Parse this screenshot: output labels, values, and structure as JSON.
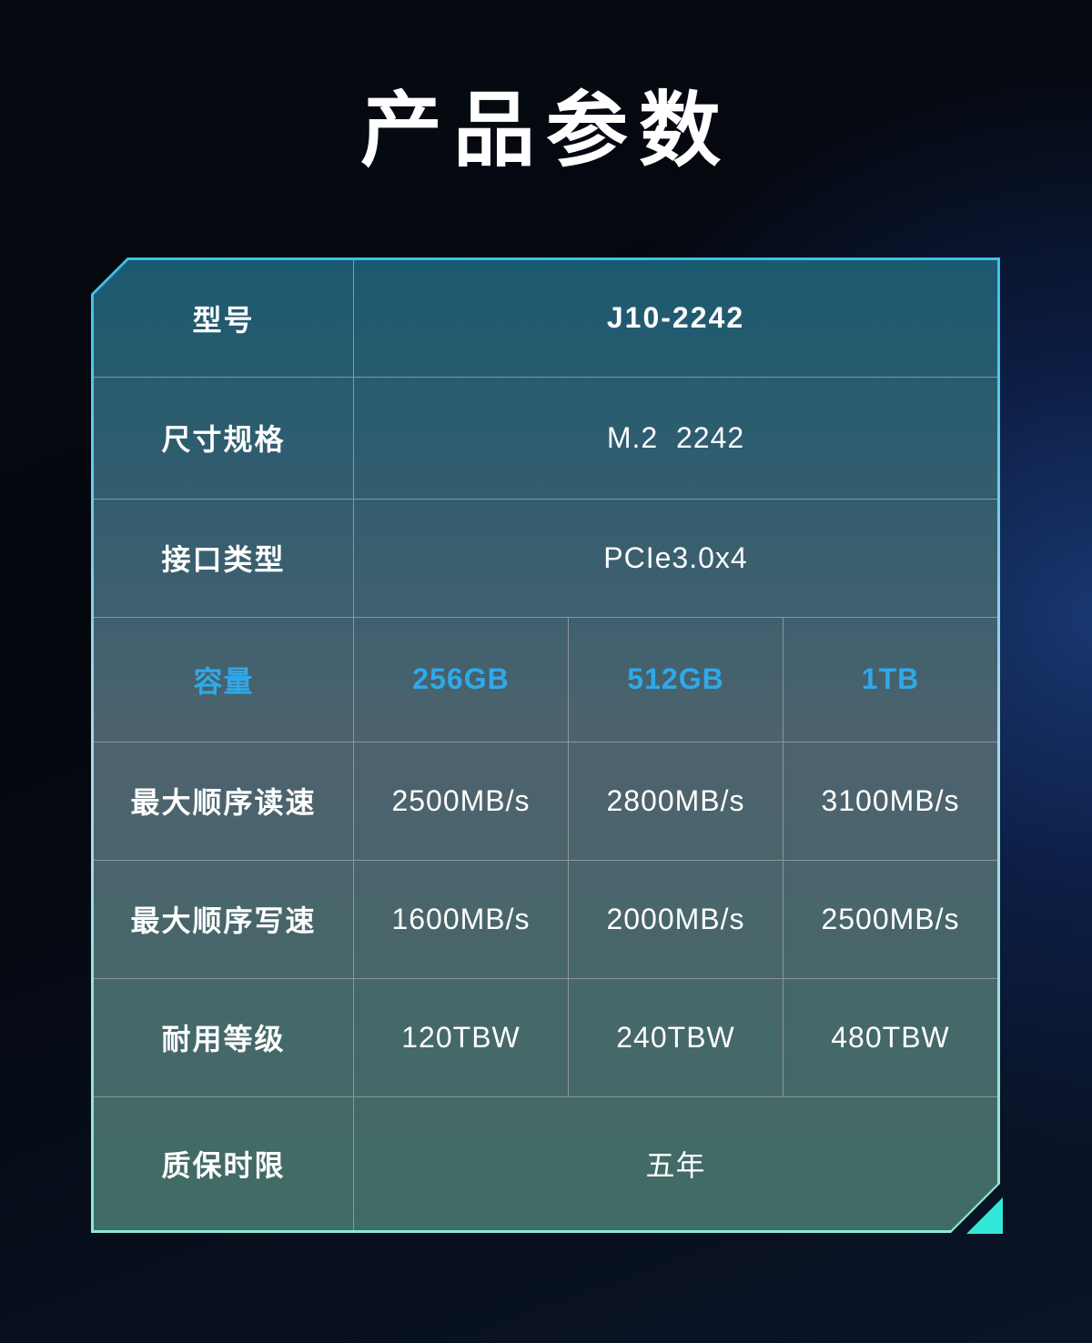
{
  "title": "产品参数",
  "theme": {
    "accent_text": "#2fa9e8",
    "frame_top": "#3ac2ec",
    "frame_mid": "#a9d6e9",
    "frame_bottom": "#8cead4",
    "corner_triangle": "#31e8d8",
    "grid_line": "#8d949e",
    "page_bg_dark": "#04070d",
    "page_bg_blue": "#16346a",
    "text_primary": "#ffffff"
  },
  "spec_table": {
    "rows": [
      {
        "label": "型号",
        "values": [
          "J10-2242"
        ]
      },
      {
        "label": "尺寸规格",
        "values": [
          "M.2  2242"
        ]
      },
      {
        "label": "接口类型",
        "values": [
          "PCIe3.0x4"
        ]
      },
      {
        "label": "容量",
        "values": [
          "256GB",
          "512GB",
          "1TB"
        ]
      },
      {
        "label": "最大顺序读速",
        "values": [
          "2500MB/s",
          "2800MB/s",
          "3100MB/s"
        ]
      },
      {
        "label": "最大顺序写速",
        "values": [
          "1600MB/s",
          "2000MB/s",
          "2500MB/s"
        ]
      },
      {
        "label": "耐用等级",
        "values": [
          "120TBW",
          "240TBW",
          "480TBW"
        ]
      },
      {
        "label": "质保时限",
        "values": [
          "五年"
        ]
      }
    ]
  }
}
